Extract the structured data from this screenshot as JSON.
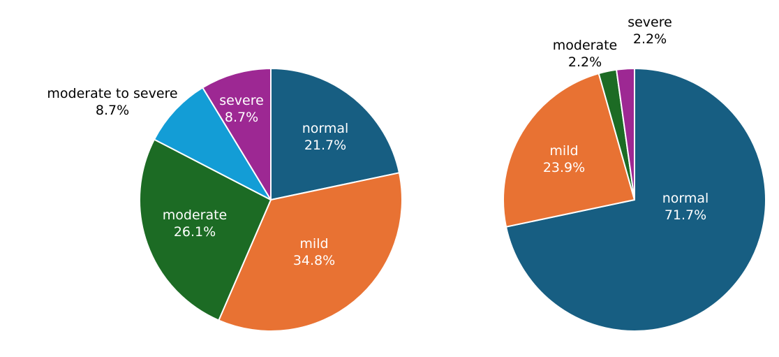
{
  "chart_data": [
    {
      "type": "pie",
      "title": "",
      "start_angle": "top",
      "direction": "clockwise",
      "slices": [
        {
          "label": "normal",
          "value": 21.7,
          "value_label": "21.7%",
          "color": "#175e82",
          "label_position": "inside"
        },
        {
          "label": "mild",
          "value": 34.8,
          "value_label": "34.8%",
          "color": "#e87233",
          "label_position": "inside"
        },
        {
          "label": "moderate",
          "value": 26.1,
          "value_label": "26.1%",
          "color": "#1c6b24",
          "label_position": "inside"
        },
        {
          "label": "moderate to severe",
          "value": 8.7,
          "value_label": "8.7%",
          "color": "#139dd6",
          "label_position": "outside"
        },
        {
          "label": "severe",
          "value": 8.7,
          "value_label": "8.7%",
          "color": "#9d2893",
          "label_position": "inside"
        }
      ]
    },
    {
      "type": "pie",
      "title": "",
      "start_angle": "top",
      "direction": "clockwise",
      "slices": [
        {
          "label": "normal",
          "value": 71.7,
          "value_label": "71.7%",
          "color": "#175e82",
          "label_position": "inside"
        },
        {
          "label": "mild",
          "value": 23.9,
          "value_label": "23.9%",
          "color": "#e87233",
          "label_position": "inside"
        },
        {
          "label": "moderate",
          "value": 2.2,
          "value_label": "2.2%",
          "color": "#1c6b24",
          "label_position": "outside"
        },
        {
          "label": "severe",
          "value": 2.2,
          "value_label": "2.2%",
          "color": "#9d2893",
          "label_position": "outside"
        }
      ]
    }
  ]
}
